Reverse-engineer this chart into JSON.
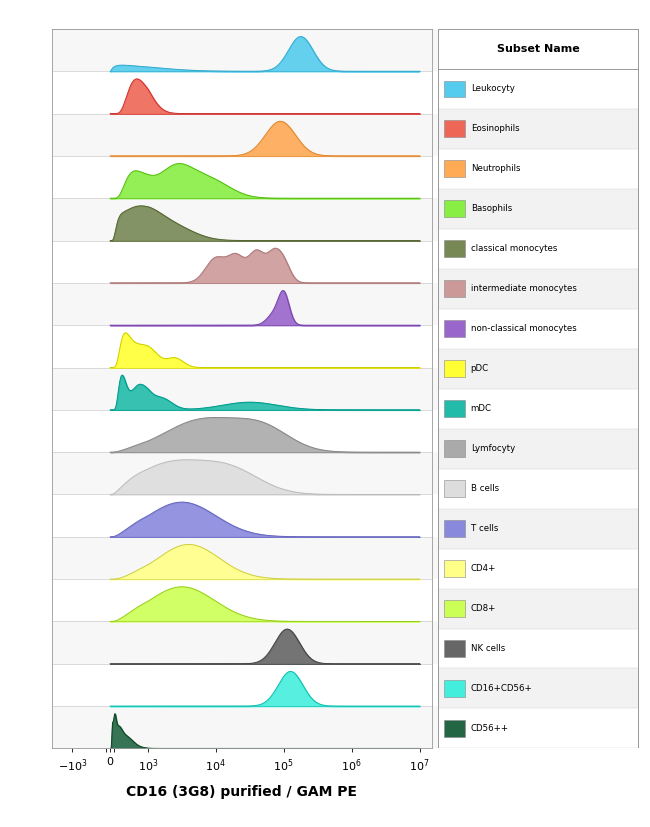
{
  "title": "CD16 (3G8) purified / GAM PE",
  "legend_title": "Subset Name",
  "subsets": [
    {
      "name": "Leukocyty",
      "color": "#55CCEE",
      "edge": "#33AACC",
      "components": [
        {
          "mean": 2.5,
          "std": 0.6,
          "weight": 0.15
        },
        {
          "mean": 5.25,
          "std": 0.18,
          "weight": 0.85
        }
      ]
    },
    {
      "name": "Eosinophils",
      "color": "#EE6655",
      "edge": "#CC3333",
      "components": [
        {
          "mean": 2.85,
          "std": 0.18,
          "weight": 1.0
        }
      ]
    },
    {
      "name": "Neutrophils",
      "color": "#FFAA55",
      "edge": "#DD8833",
      "components": [
        {
          "mean": 4.95,
          "std": 0.22,
          "weight": 1.0
        }
      ]
    },
    {
      "name": "Basophils",
      "color": "#88EE44",
      "edge": "#55BB11",
      "components": [
        {
          "mean": 2.8,
          "std": 0.2,
          "weight": 0.35
        },
        {
          "mean": 3.4,
          "std": 0.25,
          "weight": 0.4
        },
        {
          "mean": 3.9,
          "std": 0.3,
          "weight": 0.25
        }
      ]
    },
    {
      "name": "classical monocytes",
      "color": "#778855",
      "edge": "#556633",
      "components": [
        {
          "mean": 2.4,
          "std": 0.22,
          "weight": 0.3
        },
        {
          "mean": 2.9,
          "std": 0.28,
          "weight": 0.5
        },
        {
          "mean": 3.4,
          "std": 0.3,
          "weight": 0.2
        }
      ]
    },
    {
      "name": "intermediate monocytes",
      "color": "#CC9999",
      "edge": "#AA7777",
      "components": [
        {
          "mean": 4.0,
          "std": 0.15,
          "weight": 0.2
        },
        {
          "mean": 4.3,
          "std": 0.12,
          "weight": 0.2
        },
        {
          "mean": 4.6,
          "std": 0.12,
          "weight": 0.25
        },
        {
          "mean": 4.85,
          "std": 0.1,
          "weight": 0.2
        },
        {
          "mean": 5.0,
          "std": 0.1,
          "weight": 0.15
        }
      ]
    },
    {
      "name": "non-classical monocytes",
      "color": "#9966CC",
      "edge": "#7744AA",
      "components": [
        {
          "mean": 4.85,
          "std": 0.1,
          "weight": 0.25
        },
        {
          "mean": 5.0,
          "std": 0.08,
          "weight": 0.75
        }
      ]
    },
    {
      "name": "pDC",
      "color": "#FFFF33",
      "edge": "#CCCC00",
      "components": [
        {
          "mean": 2.6,
          "std": 0.18,
          "weight": 0.55
        },
        {
          "mean": 3.0,
          "std": 0.15,
          "weight": 0.3
        },
        {
          "mean": 3.4,
          "std": 0.12,
          "weight": 0.15
        }
      ]
    },
    {
      "name": "mDC",
      "color": "#22BBAA",
      "edge": "#009988",
      "components": [
        {
          "mean": 2.5,
          "std": 0.15,
          "weight": 0.45
        },
        {
          "mean": 2.9,
          "std": 0.12,
          "weight": 0.3
        },
        {
          "mean": 3.2,
          "std": 0.15,
          "weight": 0.15
        },
        {
          "mean": 4.5,
          "std": 0.4,
          "weight": 0.1
        }
      ]
    },
    {
      "name": "Lymfocyty",
      "color": "#AAAAAA",
      "edge": "#888888",
      "components": [
        {
          "mean": 3.8,
          "std": 0.55,
          "weight": 0.6
        },
        {
          "mean": 4.7,
          "std": 0.4,
          "weight": 0.4
        }
      ]
    },
    {
      "name": "B cells",
      "color": "#DDDDDD",
      "edge": "#BBBBBB",
      "components": [
        {
          "mean": 3.3,
          "std": 0.5,
          "weight": 0.55
        },
        {
          "mean": 4.2,
          "std": 0.45,
          "weight": 0.45
        }
      ]
    },
    {
      "name": "T cells",
      "color": "#8888DD",
      "edge": "#6666BB",
      "components": [
        {
          "mean": 3.5,
          "std": 0.5,
          "weight": 1.0
        }
      ]
    },
    {
      "name": "CD4+",
      "color": "#FFFF88",
      "edge": "#CCCC44",
      "components": [
        {
          "mean": 3.6,
          "std": 0.45,
          "weight": 1.0
        }
      ]
    },
    {
      "name": "CD8+",
      "color": "#CCFF55",
      "edge": "#99CC22",
      "components": [
        {
          "mean": 3.5,
          "std": 0.48,
          "weight": 1.0
        }
      ]
    },
    {
      "name": "NK cells",
      "color": "#666666",
      "edge": "#444444",
      "components": [
        {
          "mean": 5.05,
          "std": 0.18,
          "weight": 1.0
        }
      ]
    },
    {
      "name": "CD16+CD56+",
      "color": "#44EEDD",
      "edge": "#11BBAA",
      "components": [
        {
          "mean": 5.1,
          "std": 0.18,
          "weight": 1.0
        }
      ]
    },
    {
      "name": "CD56++",
      "color": "#226644",
      "edge": "#114422",
      "components": [
        {
          "mean": 1.8,
          "std": 0.15,
          "weight": 0.3
        },
        {
          "mean": 2.1,
          "std": 0.12,
          "weight": 0.35
        },
        {
          "mean": 2.4,
          "std": 0.15,
          "weight": 0.25
        },
        {
          "mean": 2.7,
          "std": 0.12,
          "weight": 0.1
        }
      ]
    }
  ],
  "legend_colors": [
    "#55CCEE",
    "#EE6655",
    "#FFAA55",
    "#88EE44",
    "#778855",
    "#CC9999",
    "#9966CC",
    "#FFFF33",
    "#22BBAA",
    "#AAAAAA",
    "#DDDDDD",
    "#8888DD",
    "#FFFF88",
    "#CCFF55",
    "#666666",
    "#44EEDD",
    "#226644"
  ],
  "background_color": "#FFFFFF"
}
